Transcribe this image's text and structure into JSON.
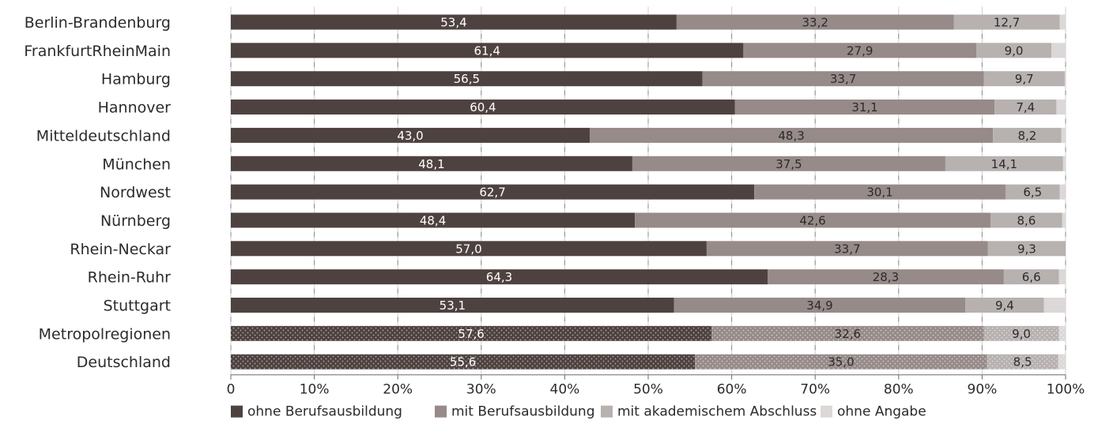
{
  "chart_data": {
    "type": "bar",
    "orientation": "horizontal",
    "stacked": true,
    "categories": [
      "Berlin-Brandenburg",
      "FrankfurtRheinMain",
      "Hamburg",
      "Hannover",
      "Mitteldeutschland",
      "München",
      "Nordwest",
      "Nürnberg",
      "Rhein-Neckar",
      "Rhein-Ruhr",
      "Stuttgart",
      "Metropolregionen",
      "Deutschland"
    ],
    "series": [
      {
        "name": "ohne Berufsausbildung",
        "color": "#4e4240",
        "values": [
          53.4,
          61.4,
          56.5,
          60.4,
          43.0,
          48.1,
          62.7,
          48.4,
          57.0,
          64.3,
          53.1,
          57.6,
          55.6
        ],
        "labels": [
          "53,4",
          "61,4",
          "56,5",
          "60,4",
          "43,0",
          "48,1",
          "62,7",
          "48,4",
          "57,0",
          "64,3",
          "53,1",
          "57,6",
          "55,6"
        ]
      },
      {
        "name": "mit Berufsausbildung",
        "color": "#968b89",
        "values": [
          33.2,
          27.9,
          33.7,
          31.1,
          48.3,
          37.5,
          30.1,
          42.6,
          33.7,
          28.3,
          34.9,
          32.6,
          35.0
        ],
        "labels": [
          "33,2",
          "27,9",
          "33,7",
          "31,1",
          "48,3",
          "37,5",
          "30,1",
          "42,6",
          "33,7",
          "28,3",
          "34,9",
          "32,6",
          "35,0"
        ]
      },
      {
        "name": "mit akademischem Abschluss",
        "color": "#b7b1b0",
        "values": [
          12.7,
          9.0,
          9.7,
          7.4,
          8.2,
          14.1,
          6.5,
          8.6,
          9.3,
          6.6,
          9.4,
          9.0,
          8.5
        ],
        "labels": [
          "12,7",
          "9,0",
          "9,7",
          "7,4",
          "8,2",
          "14,1",
          "6,5",
          "8,6",
          "9,3",
          "6,6",
          "9,4",
          "9,0",
          "8,5"
        ]
      },
      {
        "name": "ohne Angabe",
        "color": "#dcd8d7",
        "values": [
          0.7,
          1.7,
          0.1,
          1.1,
          0.5,
          0.3,
          0.7,
          0.4,
          0.0,
          0.8,
          2.6,
          0.8,
          0.9
        ],
        "labels": [
          "",
          "",
          "",
          "",
          "",
          "",
          "",
          "",
          "",
          "",
          "",
          "",
          ""
        ]
      }
    ],
    "patterned_categories": [
      "Metropolregionen",
      "Deutschland"
    ],
    "x_ticks": [
      "0",
      "10%",
      "20%",
      "30%",
      "40%",
      "50%",
      "60%",
      "70%",
      "80%",
      "90%",
      "100%"
    ],
    "xlim": [
      0,
      100
    ],
    "xlabel": "",
    "ylabel": "",
    "title": "",
    "legend_position": "bottom",
    "grid": true
  }
}
